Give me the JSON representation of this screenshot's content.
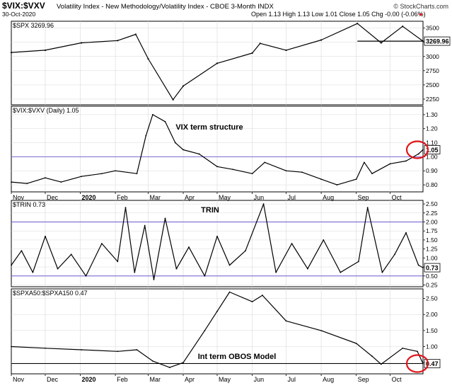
{
  "header": {
    "symbol": "$VIX:$VXV",
    "description": "Volatility Index - New Methodology/Volatility Index - CBOE 3-Month INDX",
    "date": "30-Oct-2020",
    "ohlc": "Open 1.13  High 1.13  Low 1.01  Close 1.05  Chg -0.00 (-0.06%)",
    "watermark": "© StockCharts.com"
  },
  "colors": {
    "line": "#000000",
    "ref_line": "#6a5acd",
    "grid": "#d8d8d8",
    "circle": "#e0161b"
  },
  "chart_data": [
    {
      "type": "line",
      "label": "$SPX 3269.96",
      "last_value_label": "3269.96",
      "y_ticks": [
        2250,
        2500,
        2750,
        3000,
        3250,
        3500
      ],
      "ylim": [
        2150,
        3620
      ],
      "reference_line": 3269.96,
      "x": [
        "2019-11-01",
        "2019-12-01",
        "2020-01-02",
        "2020-02-03",
        "2020-02-19",
        "2020-03-01",
        "2020-03-23",
        "2020-04-01",
        "2020-05-01",
        "2020-06-01",
        "2020-06-08",
        "2020-07-01",
        "2020-08-01",
        "2020-09-02",
        "2020-09-23",
        "2020-10-12",
        "2020-10-30"
      ],
      "values": [
        3070,
        3110,
        3240,
        3280,
        3390,
        2960,
        2240,
        2480,
        2880,
        3060,
        3230,
        3110,
        3290,
        3580,
        3240,
        3530,
        3270
      ]
    },
    {
      "type": "line",
      "label": "$VIX:$VXV (Daily) 1.05",
      "last_value_label": "1.05",
      "annotation": "VIX term structure",
      "y_ticks": [
        0.8,
        0.9,
        1.0,
        1.1,
        1.2,
        1.3
      ],
      "ylim": [
        0.75,
        1.36
      ],
      "reference_line": 1.0,
      "x": [
        "2019-11-01",
        "2019-11-15",
        "2019-12-01",
        "2019-12-15",
        "2020-01-02",
        "2020-01-20",
        "2020-02-01",
        "2020-02-20",
        "2020-02-28",
        "2020-03-05",
        "2020-03-16",
        "2020-03-25",
        "2020-04-01",
        "2020-04-15",
        "2020-05-01",
        "2020-05-15",
        "2020-06-01",
        "2020-06-12",
        "2020-07-01",
        "2020-07-15",
        "2020-08-01",
        "2020-08-15",
        "2020-09-01",
        "2020-09-08",
        "2020-09-15",
        "2020-10-01",
        "2020-10-15",
        "2020-10-26",
        "2020-10-30"
      ],
      "values": [
        0.82,
        0.81,
        0.85,
        0.82,
        0.86,
        0.88,
        0.9,
        0.88,
        1.15,
        1.3,
        1.25,
        1.1,
        1.05,
        1.02,
        0.93,
        0.91,
        0.88,
        0.96,
        0.9,
        0.89,
        0.84,
        0.8,
        0.84,
        0.96,
        0.88,
        0.95,
        0.97,
        1.02,
        1.05
      ]
    },
    {
      "type": "line",
      "label": "$TRIN 0.73",
      "last_value_label": "0.73",
      "annotation": "TRIN",
      "y_ticks": [
        0.25,
        0.5,
        0.75,
        1.0,
        1.25,
        1.5,
        1.75,
        2.0,
        2.25,
        2.5
      ],
      "ylim": [
        0.2,
        2.6
      ],
      "reference_lines": [
        2.0,
        0.5
      ],
      "x": [
        "2019-11-01",
        "2019-11-10",
        "2019-11-20",
        "2019-12-01",
        "2019-12-12",
        "2019-12-24",
        "2020-01-06",
        "2020-01-20",
        "2020-02-03",
        "2020-02-10",
        "2020-02-18",
        "2020-02-27",
        "2020-03-06",
        "2020-03-16",
        "2020-03-26",
        "2020-04-06",
        "2020-04-20",
        "2020-05-01",
        "2020-05-12",
        "2020-05-26",
        "2020-06-11",
        "2020-06-22",
        "2020-07-06",
        "2020-07-20",
        "2020-08-03",
        "2020-08-18",
        "2020-09-03",
        "2020-09-11",
        "2020-09-24",
        "2020-10-05",
        "2020-10-15",
        "2020-10-26",
        "2020-10-30"
      ],
      "values": [
        0.8,
        1.2,
        0.6,
        1.6,
        0.7,
        1.1,
        0.5,
        1.4,
        0.9,
        2.4,
        0.6,
        1.9,
        0.4,
        2.1,
        0.7,
        1.3,
        0.5,
        1.6,
        0.8,
        1.2,
        2.5,
        0.6,
        1.4,
        0.7,
        1.5,
        0.6,
        0.9,
        2.4,
        0.6,
        1.1,
        1.7,
        0.8,
        0.73
      ]
    },
    {
      "type": "line",
      "label": "$SPXA50:$SPXA150 0.47",
      "last_value_label": "0.47",
      "annotation": "Int term OBOS Model",
      "y_ticks": [
        0.5,
        1.0,
        1.5,
        2.0,
        2.5
      ],
      "ylim": [
        0.15,
        2.8
      ],
      "reference_line": 0.47,
      "x": [
        "2019-11-01",
        "2019-12-01",
        "2020-01-02",
        "2020-02-03",
        "2020-02-20",
        "2020-03-05",
        "2020-03-20",
        "2020-04-01",
        "2020-04-20",
        "2020-05-01",
        "2020-05-12",
        "2020-06-01",
        "2020-06-10",
        "2020-07-01",
        "2020-08-01",
        "2020-09-01",
        "2020-09-15",
        "2020-09-23",
        "2020-10-12",
        "2020-10-25",
        "2020-10-30"
      ],
      "values": [
        1.0,
        0.95,
        0.9,
        0.85,
        0.9,
        0.55,
        0.35,
        0.5,
        1.5,
        2.1,
        2.7,
        2.4,
        2.6,
        1.8,
        1.5,
        1.1,
        0.7,
        0.45,
        0.95,
        0.85,
        0.47
      ]
    }
  ],
  "x_axis": {
    "ticks": [
      {
        "date": "2019-11-01",
        "label": "Nov"
      },
      {
        "date": "2019-12-01",
        "label": "Dec"
      },
      {
        "date": "2020-01-01",
        "label": "2020"
      },
      {
        "date": "2020-02-01",
        "label": "Feb"
      },
      {
        "date": "2020-03-01",
        "label": "Mar"
      },
      {
        "date": "2020-04-01",
        "label": "Apr"
      },
      {
        "date": "2020-05-01",
        "label": "May"
      },
      {
        "date": "2020-06-01",
        "label": "Jun"
      },
      {
        "date": "2020-07-01",
        "label": "Jul"
      },
      {
        "date": "2020-08-01",
        "label": "Aug"
      },
      {
        "date": "2020-09-01",
        "label": "Sep"
      },
      {
        "date": "2020-10-01",
        "label": "Oct"
      }
    ],
    "range": [
      "2019-11-01",
      "2020-10-30"
    ]
  }
}
